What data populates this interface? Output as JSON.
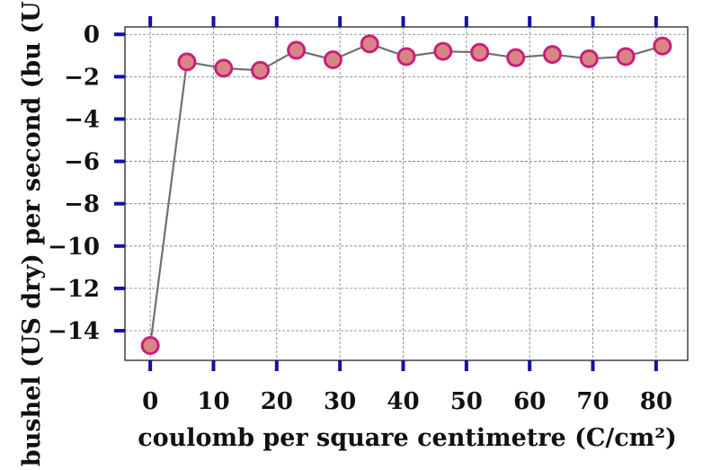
{
  "chart_data": {
    "type": "line",
    "title": "",
    "xlabel": "coulomb per square centimetre (C/cm²)",
    "ylabel": "bushel (US dry) per second (bu (US",
    "xlim": [
      -4,
      85
    ],
    "ylim": [
      -15.4,
      0.35
    ],
    "x_ticks": [
      0,
      10,
      20,
      30,
      40,
      50,
      60,
      70,
      80
    ],
    "y_ticks": [
      0,
      -2,
      -4,
      -6,
      -8,
      -10,
      -12,
      -14
    ],
    "x_tick_labels": [
      "0",
      "10",
      "20",
      "30",
      "40",
      "50",
      "60",
      "70",
      "80"
    ],
    "y_tick_labels": [
      "0",
      "−2",
      "−4",
      "−6",
      "−8",
      "−10",
      "−12",
      "−14"
    ],
    "grid": true,
    "series": [
      {
        "x": [
          0,
          5.8,
          11.6,
          17.4,
          23.1,
          28.9,
          34.7,
          40.5,
          46.3,
          52.1,
          57.8,
          63.6,
          69.4,
          75.2,
          81.0
        ],
        "y": [
          -14.7,
          -1.3,
          -1.6,
          -1.7,
          -0.75,
          -1.2,
          -0.45,
          -1.05,
          -0.8,
          -0.85,
          -1.1,
          -0.95,
          -1.15,
          -1.05,
          -0.55
        ]
      }
    ],
    "colors": {
      "line": "#707070",
      "marker_fill": "#d98585",
      "marker_edge": "#c8207c",
      "tick_marks": "#1410a8",
      "grid": "#7a7a7a"
    }
  }
}
